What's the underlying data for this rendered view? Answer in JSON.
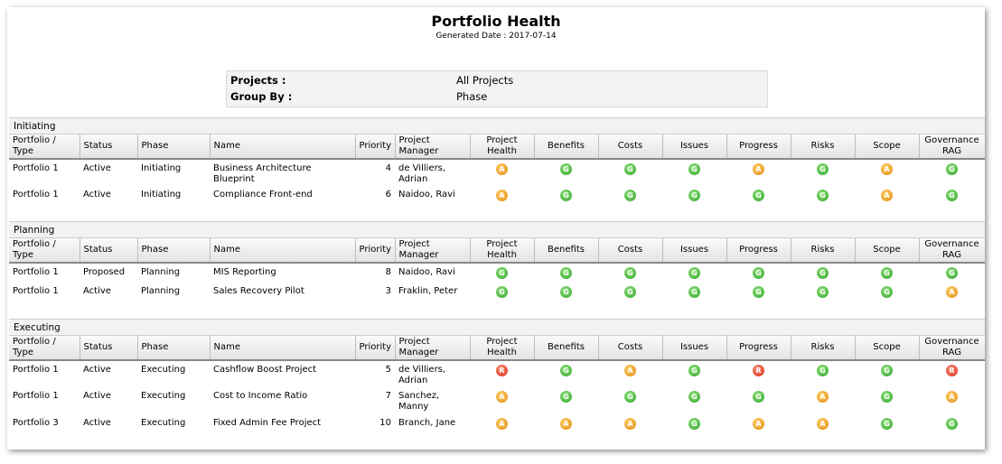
{
  "report": {
    "title": "Portfolio Health",
    "generated": "Generated Date : 2017-07-14"
  },
  "params": {
    "projects_label": "Projects :",
    "projects_value": "All Projects",
    "group_label": "Group By :",
    "group_value": "Phase"
  },
  "columns": [
    "Portfolio / Type",
    "Status",
    "Phase",
    "Name",
    "Priority",
    "Project Manager",
    "Project Health",
    "Benefits",
    "Costs",
    "Issues",
    "Progress",
    "Risks",
    "Scope",
    "Governance RAG"
  ],
  "rag_colors": {
    "G": "#3cb034",
    "A": "#ef9d1a",
    "R": "#e04428"
  },
  "groups": [
    {
      "name": "Initiating",
      "rows": [
        {
          "portfolio": "Portfolio 1",
          "status": "Active",
          "phase": "Initiating",
          "name": "Business Architecture Blueprint",
          "priority": "4",
          "manager": "de Villiers, Adrian",
          "rag": [
            "A",
            "G",
            "G",
            "G",
            "A",
            "G",
            "A",
            "G"
          ]
        },
        {
          "portfolio": "Portfolio 1",
          "status": "Active",
          "phase": "Initiating",
          "name": "Compliance Front-end",
          "priority": "6",
          "manager": "Naidoo, Ravi",
          "rag": [
            "A",
            "G",
            "G",
            "G",
            "G",
            "G",
            "A",
            "G"
          ]
        }
      ]
    },
    {
      "name": "Planning",
      "rows": [
        {
          "portfolio": "Portfolio 1",
          "status": "Proposed",
          "phase": "Planning",
          "name": "MIS Reporting",
          "priority": "8",
          "manager": "Naidoo, Ravi",
          "rag": [
            "G",
            "G",
            "G",
            "G",
            "G",
            "G",
            "G",
            "G"
          ]
        },
        {
          "portfolio": "Portfolio 1",
          "status": "Active",
          "phase": "Planning",
          "name": "Sales Recovery Pilot",
          "priority": "3",
          "manager": "Fraklin, Peter",
          "rag": [
            "G",
            "G",
            "G",
            "G",
            "G",
            "G",
            "G",
            "A"
          ]
        }
      ]
    },
    {
      "name": "Executing",
      "rows": [
        {
          "portfolio": "Portfolio 1",
          "status": "Active",
          "phase": "Executing",
          "name": "Cashflow Boost Project",
          "priority": "5",
          "manager": "de Villiers, Adrian",
          "rag": [
            "R",
            "G",
            "A",
            "G",
            "R",
            "G",
            "G",
            "R"
          ]
        },
        {
          "portfolio": "Portfolio 1",
          "status": "Active",
          "phase": "Executing",
          "name": "Cost to Income Ratio",
          "priority": "7",
          "manager": "Sanchez, Manny",
          "rag": [
            "A",
            "G",
            "G",
            "G",
            "G",
            "A",
            "G",
            "A"
          ]
        },
        {
          "portfolio": "Portfolio 3",
          "status": "Active",
          "phase": "Executing",
          "name": "Fixed Admin Fee Project",
          "priority": "10",
          "manager": "Branch, Jane",
          "rag": [
            "A",
            "A",
            "A",
            "G",
            "A",
            "A",
            "G",
            "G"
          ]
        }
      ]
    }
  ]
}
